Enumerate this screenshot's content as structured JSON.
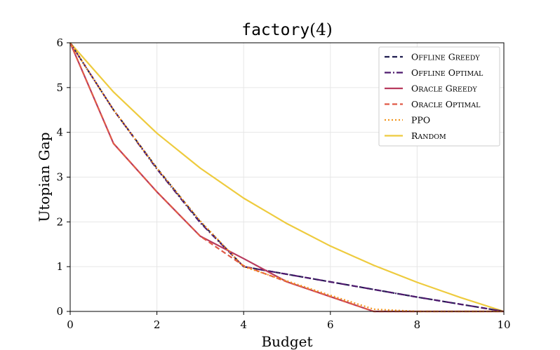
{
  "chart_data": {
    "type": "line",
    "title": "factory(4)",
    "title_parts": {
      "mono": "factory",
      "serif": "(4)"
    },
    "xlabel": "Budget",
    "ylabel": "Utopian Gap",
    "xlim": [
      0,
      10
    ],
    "ylim": [
      0,
      6
    ],
    "xticks": [
      0,
      2,
      4,
      6,
      8,
      10
    ],
    "yticks": [
      0,
      1,
      2,
      3,
      4,
      5,
      6
    ],
    "grid": true,
    "legend_position": "top-right",
    "series": [
      {
        "name": "Offline Greedy",
        "color": "#1f1d4f",
        "dash": "dashed",
        "x": [
          0,
          1,
          2,
          3,
          4,
          5,
          6,
          7,
          8,
          9,
          10
        ],
        "y": [
          6,
          4.5,
          3.2,
          2.0,
          1.0,
          0.83,
          0.66,
          0.49,
          0.32,
          0.16,
          0
        ]
      },
      {
        "name": "Offline Optimal",
        "color": "#4e1a6e",
        "dash": "dashdot",
        "x": [
          0,
          1,
          2,
          3,
          4,
          5,
          6,
          7,
          8,
          9,
          10
        ],
        "y": [
          6,
          4.5,
          3.18,
          1.98,
          1.0,
          0.83,
          0.66,
          0.49,
          0.32,
          0.16,
          0
        ]
      },
      {
        "name": "Oracle Greedy",
        "color": "#b83b5e",
        "dash": "solid",
        "x": [
          0,
          1,
          2,
          3,
          4,
          5,
          6,
          7,
          8,
          9,
          10
        ],
        "y": [
          6,
          3.75,
          2.67,
          1.68,
          1.18,
          0.66,
          0.33,
          0.0,
          0.0,
          0.0,
          0.0
        ]
      },
      {
        "name": "Oracle Optimal",
        "color": "#e05a47",
        "dash": "dashed",
        "x": [
          0,
          1,
          2,
          3,
          4,
          5,
          6,
          7,
          8,
          9,
          10
        ],
        "y": [
          6,
          3.75,
          2.67,
          1.68,
          1.02,
          0.66,
          0.33,
          0.0,
          0.0,
          0.0,
          0.0
        ]
      },
      {
        "name": "PPO",
        "color": "#f2961f",
        "dash": "dotted",
        "x": [
          0,
          1,
          2,
          3,
          4,
          5,
          6,
          7,
          8,
          9,
          10
        ],
        "y": [
          6,
          4.5,
          3.2,
          2.02,
          1.0,
          0.68,
          0.36,
          0.05,
          0.0,
          0.0,
          0.0
        ]
      },
      {
        "name": "Random",
        "color": "#eecb3e",
        "dash": "solid",
        "x": [
          0,
          1,
          2,
          3,
          4,
          5,
          6,
          7,
          8,
          9,
          10
        ],
        "y": [
          6,
          4.9,
          3.98,
          3.2,
          2.53,
          1.96,
          1.46,
          1.03,
          0.65,
          0.31,
          0
        ]
      }
    ]
  }
}
